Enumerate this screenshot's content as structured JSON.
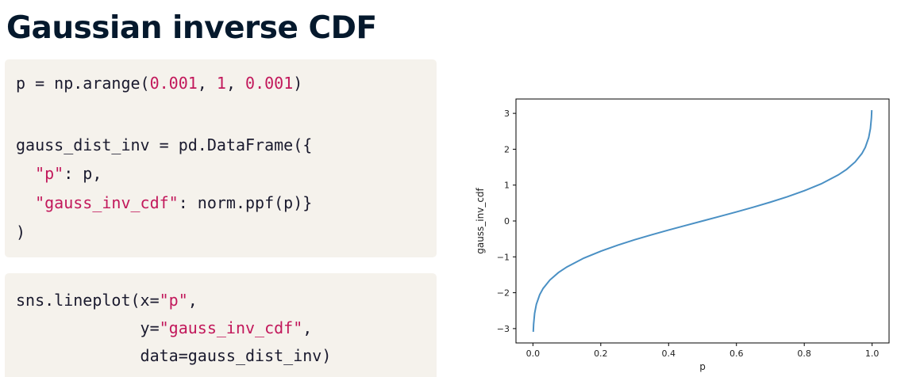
{
  "page": {
    "title": "Gaussian inverse CDF"
  },
  "code_block_1": {
    "lines": [
      [
        {
          "t": "p = np.arange(",
          "k": "plain"
        },
        {
          "t": "0.001",
          "k": "num"
        },
        {
          "t": ", ",
          "k": "plain"
        },
        {
          "t": "1",
          "k": "num"
        },
        {
          "t": ", ",
          "k": "plain"
        },
        {
          "t": "0.001",
          "k": "num"
        },
        {
          "t": ")",
          "k": "plain"
        }
      ],
      [],
      [
        {
          "t": "gauss_dist_inv = pd.DataFrame({",
          "k": "plain"
        }
      ],
      [
        {
          "t": "  ",
          "k": "plain"
        },
        {
          "t": "\"p\"",
          "k": "str"
        },
        {
          "t": ": p,",
          "k": "plain"
        }
      ],
      [
        {
          "t": "  ",
          "k": "plain"
        },
        {
          "t": "\"gauss_inv_cdf\"",
          "k": "str"
        },
        {
          "t": ": norm.ppf(p)}",
          "k": "plain"
        }
      ],
      [
        {
          "t": ")",
          "k": "plain"
        }
      ]
    ]
  },
  "code_block_2": {
    "lines": [
      [
        {
          "t": "sns.lineplot(x=",
          "k": "plain"
        },
        {
          "t": "\"p\"",
          "k": "str"
        },
        {
          "t": ",",
          "k": "plain"
        }
      ],
      [
        {
          "t": "             y=",
          "k": "plain"
        },
        {
          "t": "\"gauss_inv_cdf\"",
          "k": "str"
        },
        {
          "t": ",",
          "k": "plain"
        }
      ],
      [
        {
          "t": "             data=gauss_dist_inv)",
          "k": "plain"
        }
      ]
    ]
  },
  "colors": {
    "code_bg": "#f5f2ec",
    "code_string": "#c2185b",
    "line": "#4a90c4",
    "title": "#05192d"
  },
  "chart_data": {
    "type": "line",
    "title": "",
    "xlabel": "p",
    "ylabel": "gauss_inv_cdf",
    "xlim": [
      -0.05,
      1.05
    ],
    "ylim": [
      -3.4,
      3.4
    ],
    "xticks": [
      0.0,
      0.2,
      0.4,
      0.6,
      0.8,
      1.0
    ],
    "xtick_labels": [
      "0.0",
      "0.2",
      "0.4",
      "0.6",
      "0.8",
      "1.0"
    ],
    "yticks": [
      -3,
      -2,
      -1,
      0,
      1,
      2,
      3
    ],
    "ytick_labels": [
      "−3",
      "−2",
      "−1",
      "0",
      "1",
      "2",
      "3"
    ],
    "grid": false,
    "series": [
      {
        "x": [
          0.001,
          0.002,
          0.005,
          0.01,
          0.02,
          0.03,
          0.05,
          0.075,
          0.1,
          0.15,
          0.2,
          0.25,
          0.3,
          0.35,
          0.4,
          0.45,
          0.5,
          0.55,
          0.6,
          0.65,
          0.7,
          0.75,
          0.8,
          0.85,
          0.9,
          0.925,
          0.95,
          0.97,
          0.98,
          0.99,
          0.995,
          0.998,
          0.999
        ],
        "y": [
          -3.09,
          -2.878,
          -2.576,
          -2.326,
          -2.054,
          -1.881,
          -1.645,
          -1.44,
          -1.282,
          -1.036,
          -0.842,
          -0.674,
          -0.524,
          -0.385,
          -0.253,
          -0.126,
          0.0,
          0.126,
          0.253,
          0.385,
          0.524,
          0.674,
          0.842,
          1.036,
          1.282,
          1.44,
          1.645,
          1.881,
          2.054,
          2.326,
          2.576,
          2.878,
          3.09
        ]
      }
    ]
  }
}
